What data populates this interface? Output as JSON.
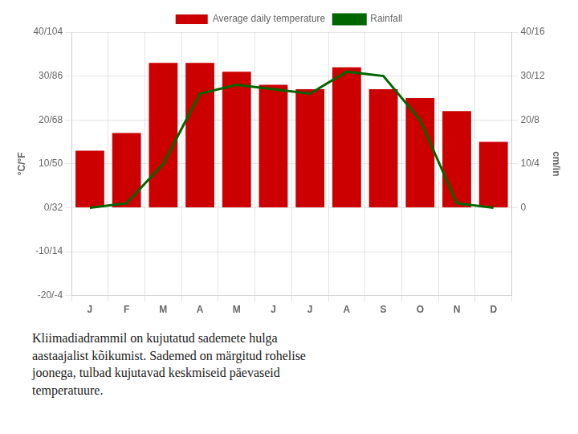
{
  "chart_data": {
    "type": "bar",
    "categories": [
      "J",
      "F",
      "M",
      "A",
      "M",
      "J",
      "J",
      "A",
      "S",
      "O",
      "N",
      "D"
    ],
    "series": [
      {
        "name": "Average daily temperature",
        "type": "bar",
        "color": "#cc0000",
        "values": [
          13,
          17,
          33,
          33,
          31,
          28,
          27,
          32,
          27,
          25,
          22,
          15
        ]
      },
      {
        "name": "Rainfall",
        "type": "line",
        "color": "#006600",
        "values": [
          0,
          1,
          10,
          26,
          28,
          27,
          26,
          31,
          30,
          20,
          1,
          0
        ]
      }
    ],
    "ylim": [
      -20,
      40
    ],
    "yticks": [
      {
        "value": -20,
        "label": "-20/-4"
      },
      {
        "value": -10,
        "label": "-10/14"
      },
      {
        "value": 0,
        "label": "0/32"
      },
      {
        "value": 10,
        "label": "10/50"
      },
      {
        "value": 20,
        "label": "20/68"
      },
      {
        "value": 30,
        "label": "30/86"
      },
      {
        "value": 40,
        "label": "40/104"
      }
    ],
    "y2lim": [
      -20,
      40
    ],
    "y2ticks": [
      0,
      {
        "value": 10,
        "label": "10/4"
      },
      {
        "value": 20,
        "label": "20/8"
      },
      {
        "value": 30,
        "label": "30/12"
      },
      {
        "value": 40,
        "label": "40/16"
      }
    ],
    "ylabel": "°C/°F",
    "y2label": "cm/in",
    "caption": "Kliimadiadrammil on kujutatud sademete hulga\naastaajalist kõikumist. Sademed on märgitud rohelise\njoonega, tulbad kujutavad keskmiseid päevaseid\ntemperatuure.",
    "grid": true,
    "legend": "top"
  }
}
